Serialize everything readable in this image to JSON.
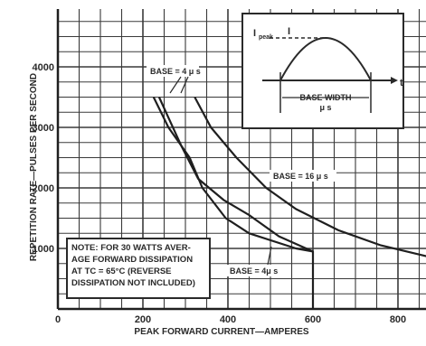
{
  "chart_data": {
    "type": "line",
    "xlabel": "PEAK FORWARD CURRENT—AMPERES",
    "ylabel": "REPETITION RATE—PULSES PER SECOND",
    "xlim": [
      0,
      880
    ],
    "ylim": [
      0,
      4000
    ],
    "x_ticks": [
      "0",
      "200",
      "400",
      "600",
      "800"
    ],
    "y_ticks": [
      "1000",
      "2000",
      "3000",
      "4000"
    ],
    "grid": true,
    "series": [
      {
        "name": "BASE = 4 μs (4 μs)",
        "points": [
          [
            225,
            3500
          ],
          [
            260,
            3000
          ],
          [
            310,
            2500
          ],
          [
            340,
            2000
          ],
          [
            395,
            1500
          ],
          [
            450,
            1250
          ],
          [
            560,
            1000
          ],
          [
            600,
            950
          ],
          [
            600,
            0
          ]
        ]
      },
      {
        "name": "BASE = 4 μs (curve)",
        "points": [
          [
            238,
            3500
          ],
          [
            290,
            2700
          ],
          [
            330,
            2150
          ],
          [
            390,
            1800
          ],
          [
            450,
            1550
          ],
          [
            520,
            1200
          ],
          [
            600,
            950
          ]
        ]
      },
      {
        "name": "BASE = 16 μs",
        "points": [
          [
            322,
            3500
          ],
          [
            360,
            3000
          ],
          [
            420,
            2500
          ],
          [
            490,
            2000
          ],
          [
            560,
            1650
          ],
          [
            660,
            1300
          ],
          [
            760,
            1050
          ],
          [
            880,
            850
          ]
        ]
      }
    ],
    "annotations": {
      "base_top": "BASE = 4 μ s",
      "base_16": "BASE = 16 μ s",
      "base_bottom": "BASE = 4μ s",
      "inset_peak": "I",
      "inset_peak_sub": "peak",
      "inset_i": "I",
      "inset_t": "t",
      "inset_base_width": "BASE WIDTH",
      "inset_mu_s": "μ s"
    },
    "note": [
      "NOTE:  FOR 30 WATTS AVER-",
      "AGE FORWARD DISSIPATION",
      "AT  TC = 65°C  (REVERSE",
      "DISSIPATION NOT INCLUDED)"
    ]
  }
}
